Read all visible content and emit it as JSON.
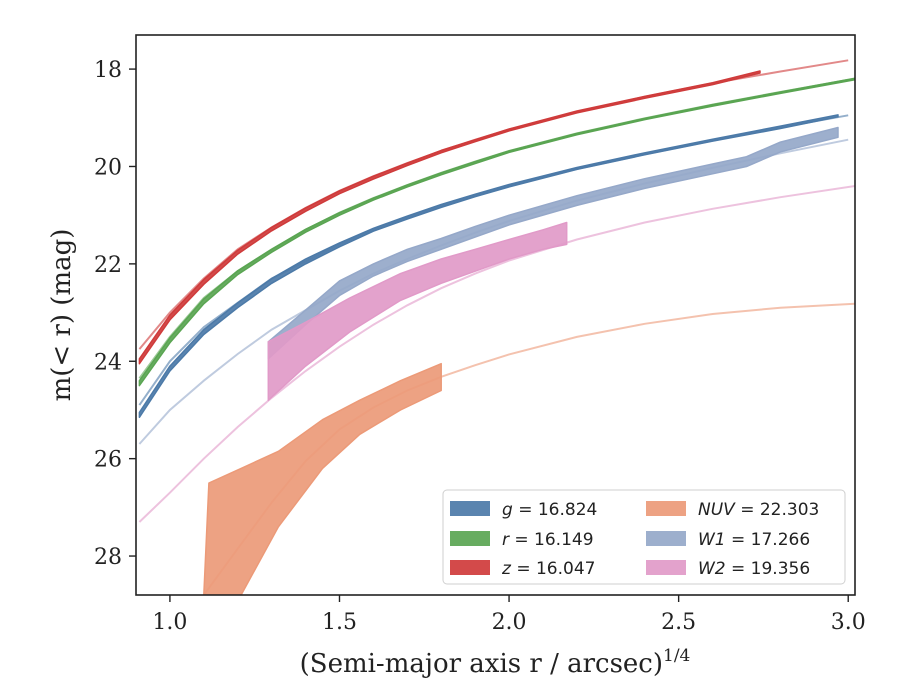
{
  "chart_data": {
    "type": "line",
    "xlabel": "(Semi-major axis r / arcsec)",
    "xlabel_exponent": "1/4",
    "ylabel": "m(< r) (mag)",
    "xlim": [
      0.9,
      3.02
    ],
    "ylim": [
      28.8,
      17.3
    ],
    "y_inverted": true,
    "grid": false,
    "legend_position": "lower-right",
    "legend_columns": 2,
    "x_ticks": [
      "1.0",
      "1.5",
      "2.0",
      "2.5",
      "3.0"
    ],
    "y_ticks": [
      "18",
      "20",
      "22",
      "24",
      "26",
      "28"
    ],
    "series": [
      {
        "name": "g",
        "legend_value": "16.824",
        "color": "#4c7aa8",
        "model_x": [
          0.91,
          1.0,
          1.1,
          1.2,
          1.3,
          1.4,
          1.5,
          1.6,
          1.7,
          1.8,
          1.9,
          2.0,
          2.2,
          2.4,
          2.6,
          2.8,
          3.0
        ],
        "model_y": [
          24.9,
          24.0,
          23.3,
          22.8,
          22.3,
          21.95,
          21.6,
          21.3,
          21.05,
          20.82,
          20.6,
          20.4,
          20.05,
          19.75,
          19.47,
          19.2,
          18.95
        ],
        "obs_x": [
          0.91,
          1.0,
          1.1,
          1.2,
          1.3,
          1.4,
          1.5,
          1.6,
          1.7,
          1.8,
          1.9,
          2.0,
          2.2,
          2.4,
          2.6,
          2.8,
          2.97
        ],
        "obs_lo": [
          25.15,
          24.2,
          23.45,
          22.9,
          22.4,
          22.0,
          21.65,
          21.33,
          21.08,
          20.84,
          20.62,
          20.42,
          20.06,
          19.76,
          19.48,
          19.22,
          18.98
        ],
        "obs_hi": [
          25.05,
          24.1,
          23.35,
          22.8,
          22.3,
          21.9,
          21.57,
          21.27,
          21.02,
          20.78,
          20.57,
          20.37,
          20.02,
          19.72,
          19.44,
          19.17,
          18.94
        ]
      },
      {
        "name": "r",
        "legend_value": "16.149",
        "color": "#5aa552",
        "model_x": [
          0.91,
          1.0,
          1.1,
          1.2,
          1.3,
          1.4,
          1.5,
          1.6,
          1.7,
          1.8,
          1.9,
          2.0,
          2.2,
          2.4,
          2.6,
          2.8,
          3.0
        ],
        "model_y": [
          24.35,
          23.5,
          22.7,
          22.15,
          21.7,
          21.3,
          20.95,
          20.65,
          20.38,
          20.13,
          19.9,
          19.68,
          19.32,
          19.01,
          18.73,
          18.47,
          18.22
        ],
        "obs_x": [
          0.91,
          1.0,
          1.1,
          1.2,
          1.3,
          1.4,
          1.5,
          1.6,
          1.7,
          1.8,
          1.9,
          2.0,
          2.2,
          2.4,
          2.6,
          2.8,
          3.02
        ],
        "obs_lo": [
          24.5,
          23.62,
          22.82,
          22.22,
          21.76,
          21.35,
          21.0,
          20.69,
          20.42,
          20.17,
          19.94,
          19.71,
          19.35,
          19.04,
          18.76,
          18.5,
          18.22
        ],
        "obs_hi": [
          24.4,
          23.52,
          22.72,
          22.14,
          21.7,
          21.29,
          20.95,
          20.65,
          20.38,
          20.13,
          19.9,
          19.68,
          19.32,
          19.01,
          18.73,
          18.47,
          18.19
        ]
      },
      {
        "name": "z",
        "legend_value": "16.047",
        "color": "#cf3b3b",
        "model_x": [
          0.91,
          1.0,
          1.1,
          1.2,
          1.3,
          1.4,
          1.5,
          1.6,
          1.7,
          1.8,
          1.9,
          2.0,
          2.2,
          2.4,
          2.6,
          2.8,
          3.0
        ],
        "model_y": [
          23.75,
          23.0,
          22.3,
          21.7,
          21.25,
          20.85,
          20.5,
          20.2,
          19.93,
          19.68,
          19.45,
          19.24,
          18.88,
          18.57,
          18.29,
          18.05,
          17.82
        ],
        "obs_x": [
          0.91,
          1.0,
          1.1,
          1.2,
          1.3,
          1.4,
          1.5,
          1.6,
          1.7,
          1.8,
          1.9,
          2.0,
          2.2,
          2.4,
          2.6,
          2.74
        ],
        "obs_lo": [
          24.05,
          23.15,
          22.42,
          21.8,
          21.32,
          20.92,
          20.56,
          20.26,
          19.98,
          19.72,
          19.49,
          19.27,
          18.9,
          18.6,
          18.32,
          18.08
        ],
        "obs_hi": [
          23.95,
          23.05,
          22.32,
          21.72,
          21.25,
          20.85,
          20.5,
          20.2,
          19.93,
          19.67,
          19.45,
          19.23,
          18.86,
          18.56,
          18.28,
          18.04
        ]
      },
      {
        "name": "NUV",
        "legend_value": "22.303",
        "color": "#ec9a78",
        "model_x": [
          1.1,
          1.2,
          1.3,
          1.4,
          1.5,
          1.6,
          1.7,
          1.8,
          1.9,
          2.0,
          2.2,
          2.4,
          2.6,
          2.8,
          3.02
        ],
        "model_y": [
          28.8,
          27.85,
          26.9,
          26.05,
          25.4,
          24.95,
          24.6,
          24.32,
          24.08,
          23.86,
          23.5,
          23.23,
          23.03,
          22.9,
          22.82
        ],
        "obs_x": [
          1.1,
          1.115,
          1.21,
          1.32,
          1.45,
          1.56,
          1.68,
          1.8
        ],
        "obs_lo": [
          28.8,
          28.8,
          28.8,
          27.4,
          26.2,
          25.5,
          25.0,
          24.6
        ],
        "obs_hi": [
          28.8,
          26.5,
          26.2,
          25.85,
          25.2,
          24.8,
          24.4,
          24.05
        ]
      },
      {
        "name": "W1",
        "legend_value": "17.266",
        "color": "#95a8c9",
        "model_x": [
          0.91,
          1.0,
          1.1,
          1.2,
          1.3,
          1.4,
          1.5,
          1.6,
          1.7,
          1.8,
          1.9,
          2.0,
          2.2,
          2.4,
          2.6,
          2.8,
          3.0
        ],
        "model_y": [
          25.7,
          25.0,
          24.4,
          23.85,
          23.35,
          22.95,
          22.55,
          22.2,
          21.9,
          21.62,
          21.36,
          21.12,
          20.7,
          20.35,
          20.03,
          19.73,
          19.45
        ],
        "obs_x": [
          1.29,
          1.4,
          1.5,
          1.6,
          1.7,
          1.8,
          1.9,
          2.0,
          2.2,
          2.4,
          2.6,
          2.7,
          2.8,
          2.97
        ],
        "obs_lo": [
          23.95,
          23.25,
          22.65,
          22.25,
          21.95,
          21.7,
          21.45,
          21.2,
          20.8,
          20.45,
          20.15,
          20.0,
          19.7,
          19.4
        ],
        "obs_hi": [
          23.6,
          22.95,
          22.35,
          22.0,
          21.7,
          21.48,
          21.23,
          21.0,
          20.6,
          20.25,
          19.95,
          19.8,
          19.5,
          19.2
        ]
      },
      {
        "name": "W2",
        "legend_value": "19.356",
        "color": "#e19ac8",
        "model_x": [
          0.91,
          1.0,
          1.1,
          1.2,
          1.3,
          1.4,
          1.5,
          1.6,
          1.7,
          1.8,
          1.9,
          2.0,
          2.2,
          2.4,
          2.6,
          2.8,
          3.02
        ],
        "model_y": [
          27.3,
          26.7,
          26.0,
          25.35,
          24.75,
          24.2,
          23.7,
          23.25,
          22.85,
          22.5,
          22.2,
          21.93,
          21.5,
          21.15,
          20.87,
          20.63,
          20.4
        ],
        "obs_x": [
          1.29,
          1.4,
          1.53,
          1.68,
          1.8,
          1.9,
          2.0,
          2.1,
          2.17
        ],
        "obs_lo": [
          24.8,
          24.1,
          23.4,
          22.75,
          22.4,
          22.15,
          21.9,
          21.7,
          21.6
        ],
        "obs_hi": [
          23.6,
          23.2,
          22.7,
          22.2,
          21.9,
          21.7,
          21.5,
          21.3,
          21.15
        ]
      }
    ]
  }
}
